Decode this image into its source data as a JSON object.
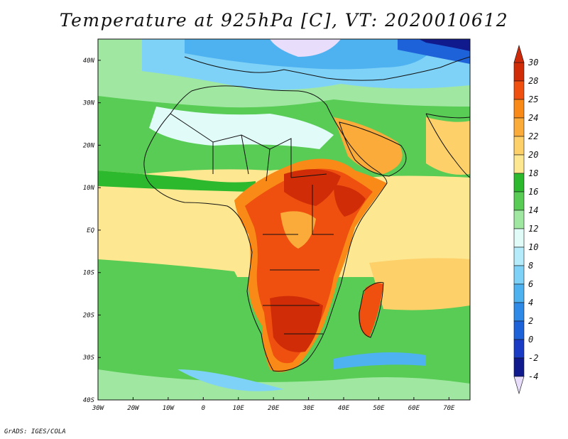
{
  "title": "Temperature at 925hPa [C], VT: 2020010612",
  "credit": "GrADS: IGES/COLA",
  "map": {
    "lat_labels": [
      "40N",
      "30N",
      "20N",
      "10N",
      "EQ",
      "10S",
      "20S",
      "30S",
      "40S"
    ],
    "lon_labels": [
      "30W",
      "20W",
      "10W",
      "0",
      "10E",
      "20E",
      "30E",
      "40E",
      "50E",
      "60E",
      "70E"
    ],
    "lat_range": [
      -40,
      45
    ],
    "lon_range": [
      -30,
      76
    ]
  },
  "colorbar": {
    "labels": [
      "30",
      "28",
      "25",
      "24",
      "22",
      "20",
      "18",
      "16",
      "14",
      "12",
      "10",
      "8",
      "6",
      "4",
      "2",
      "0",
      "-2",
      "-4"
    ],
    "colors": [
      "#d12c08",
      "#f0500f",
      "#f98a18",
      "#fbab3a",
      "#fdd06a",
      "#fde891",
      "#2cb92e",
      "#58cc54",
      "#a0e8a2",
      "#e0fbf8",
      "#b5ecfb",
      "#7fd2f7",
      "#4eb2f0",
      "#2e8ae6",
      "#1e62da",
      "#1a3cc4",
      "#111a8c"
    ],
    "top_arrow_color": "#cc2a0a",
    "bottom_arrow_color": "#e8ddfb"
  },
  "field_colors": {
    "ocean_warm": "#fde891",
    "ocean_mid": "#fdd06a",
    "ocean_cool_green": "#58cc54",
    "ocean_pale_green": "#a0e8a2",
    "cold_north": "#4eb2f0",
    "very_cold": "#1e62da",
    "hot": "#f0500f",
    "hottest": "#d12c08",
    "pale_cyan": "#e0fbf8",
    "light_blue": "#7fd2f7"
  }
}
